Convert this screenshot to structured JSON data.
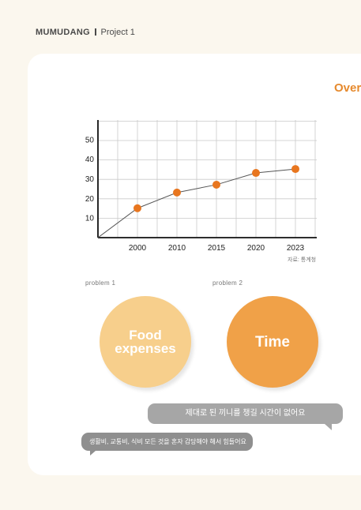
{
  "header": {
    "brand": "MUMUDANG",
    "project": "Project 1"
  },
  "overview": {
    "title": "Over"
  },
  "chart_data": {
    "type": "line",
    "categories": [
      "2000",
      "2010",
      "2015",
      "2020",
      "2023"
    ],
    "values": [
      15,
      23,
      27,
      33,
      35
    ],
    "yticks": [
      "10",
      "20",
      "30",
      "40",
      "50"
    ],
    "ylim": [
      0,
      60
    ],
    "grid": true,
    "line_color": "#555555",
    "point_color": "#e8761f",
    "source": "자료: 통계청"
  },
  "problems": [
    {
      "label": "problem 1",
      "title": "Food expenses",
      "color": "#f7cf8c"
    },
    {
      "label": "problem 2",
      "title": "Time",
      "color": "#f0a148"
    }
  ],
  "bubbles": [
    "제대로 된 끼니를 챙길 시간이 없어요",
    "생활비, 교통비, 식비 모든 것을 혼자 감당해야 해서 힘들어요"
  ]
}
